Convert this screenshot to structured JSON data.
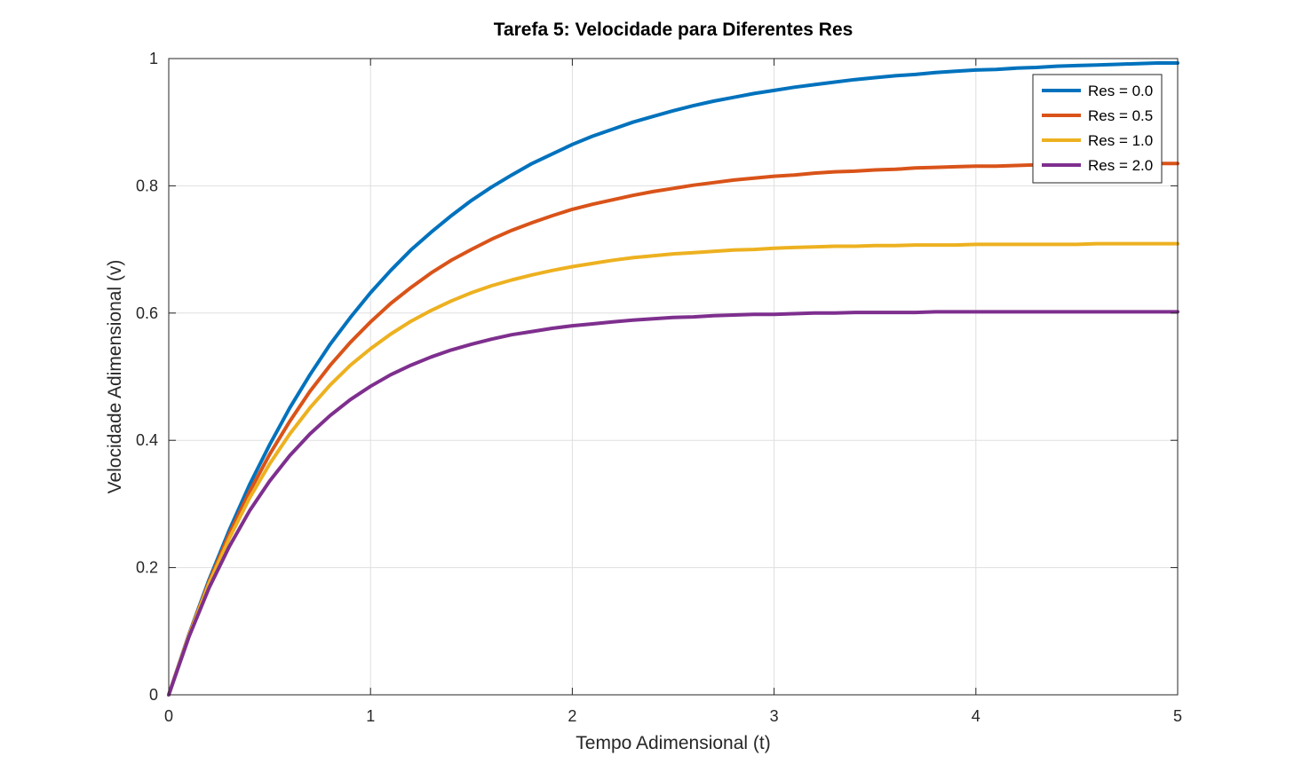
{
  "chart_data": {
    "type": "line",
    "title": "Tarefa 5: Velocidade para Diferentes Res",
    "xlabel": "Tempo Adimensional (t)",
    "ylabel": "Velocidade Adimensional (v)",
    "xlim": [
      0,
      5
    ],
    "ylim": [
      0,
      1
    ],
    "xticks": [
      0,
      1,
      2,
      3,
      4,
      5
    ],
    "xtick_labels": [
      "0",
      "1",
      "2",
      "3",
      "4",
      "5"
    ],
    "yticks": [
      0,
      0.2,
      0.4,
      0.6,
      0.8,
      1
    ],
    "ytick_labels": [
      "0",
      "0.2",
      "0.4",
      "0.6",
      "0.8",
      "1"
    ],
    "grid": true,
    "legend_position": "top-right",
    "x": [
      0,
      0.1,
      0.2,
      0.3,
      0.4,
      0.5,
      0.6,
      0.7,
      0.8,
      0.9,
      1.0,
      1.1,
      1.2,
      1.3,
      1.4,
      1.5,
      1.6,
      1.7,
      1.8,
      1.9,
      2.0,
      2.1,
      2.2,
      2.3,
      2.4,
      2.5,
      2.6,
      2.7,
      2.8,
      2.9,
      3.0,
      3.1,
      3.2,
      3.3,
      3.4,
      3.5,
      3.6,
      3.7,
      3.8,
      3.9,
      4.0,
      4.1,
      4.2,
      4.3,
      4.4,
      4.5,
      4.6,
      4.7,
      4.8,
      4.9,
      5.0
    ],
    "series": [
      {
        "name": "Res = 0.0",
        "color": "#0072BD",
        "values": [
          0,
          0.095,
          0.181,
          0.259,
          0.33,
          0.393,
          0.451,
          0.503,
          0.551,
          0.593,
          0.632,
          0.667,
          0.699,
          0.727,
          0.753,
          0.777,
          0.798,
          0.817,
          0.835,
          0.85,
          0.865,
          0.878,
          0.889,
          0.9,
          0.909,
          0.918,
          0.926,
          0.933,
          0.939,
          0.945,
          0.95,
          0.955,
          0.959,
          0.963,
          0.967,
          0.97,
          0.973,
          0.975,
          0.978,
          0.98,
          0.982,
          0.983,
          0.985,
          0.986,
          0.988,
          0.989,
          0.99,
          0.991,
          0.992,
          0.993,
          0.993
        ]
      },
      {
        "name": "Res = 0.5",
        "color": "#D95319",
        "values": [
          0,
          0.094,
          0.178,
          0.253,
          0.319,
          0.378,
          0.43,
          0.477,
          0.518,
          0.554,
          0.586,
          0.615,
          0.64,
          0.663,
          0.683,
          0.7,
          0.716,
          0.73,
          0.742,
          0.753,
          0.763,
          0.771,
          0.778,
          0.785,
          0.791,
          0.796,
          0.801,
          0.805,
          0.809,
          0.812,
          0.815,
          0.817,
          0.82,
          0.822,
          0.823,
          0.825,
          0.826,
          0.828,
          0.829,
          0.83,
          0.831,
          0.831,
          0.832,
          0.833,
          0.833,
          0.834,
          0.834,
          0.834,
          0.835,
          0.835,
          0.835
        ]
      },
      {
        "name": "Res = 1.0",
        "color": "#EDB120",
        "values": [
          0,
          0.093,
          0.175,
          0.246,
          0.309,
          0.363,
          0.41,
          0.451,
          0.487,
          0.518,
          0.544,
          0.567,
          0.587,
          0.604,
          0.619,
          0.632,
          0.643,
          0.652,
          0.66,
          0.667,
          0.673,
          0.678,
          0.683,
          0.687,
          0.69,
          0.693,
          0.695,
          0.697,
          0.699,
          0.7,
          0.702,
          0.703,
          0.704,
          0.705,
          0.705,
          0.706,
          0.706,
          0.707,
          0.707,
          0.707,
          0.708,
          0.708,
          0.708,
          0.708,
          0.708,
          0.708,
          0.709,
          0.709,
          0.709,
          0.709,
          0.709
        ]
      },
      {
        "name": "Res = 2.0",
        "color": "#7E2F8E",
        "values": [
          0,
          0.091,
          0.168,
          0.233,
          0.289,
          0.336,
          0.376,
          0.41,
          0.439,
          0.464,
          0.485,
          0.503,
          0.518,
          0.531,
          0.542,
          0.551,
          0.559,
          0.566,
          0.571,
          0.576,
          0.58,
          0.583,
          0.586,
          0.589,
          0.591,
          0.593,
          0.594,
          0.596,
          0.597,
          0.598,
          0.598,
          0.599,
          0.6,
          0.6,
          0.601,
          0.601,
          0.601,
          0.601,
          0.602,
          0.602,
          0.602,
          0.602,
          0.602,
          0.602,
          0.602,
          0.602,
          0.602,
          0.602,
          0.602,
          0.602,
          0.602
        ]
      }
    ]
  }
}
